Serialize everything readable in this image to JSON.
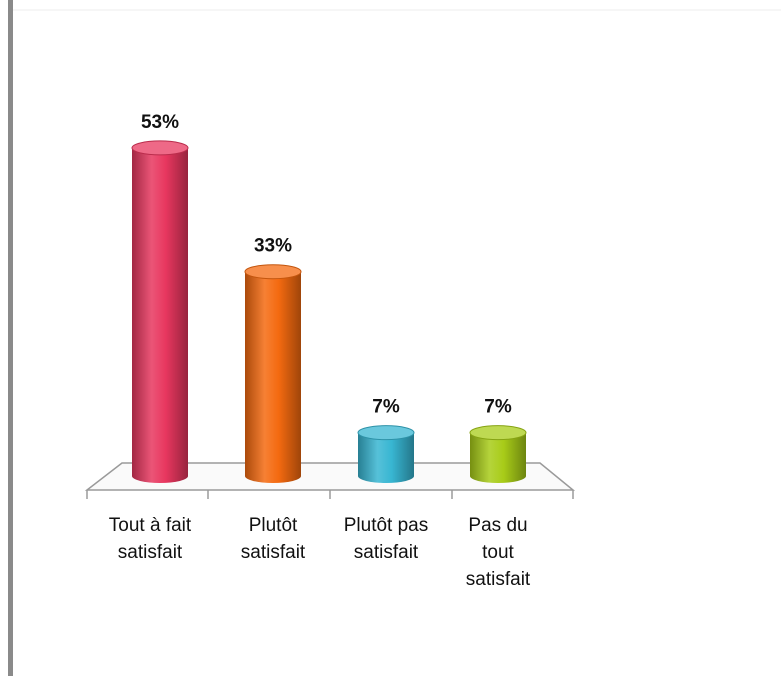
{
  "chart_data": {
    "type": "bar",
    "categories": [
      "Tout à fait satisfait",
      "Plutôt satisfait",
      "Plutôt pas satisfait",
      "Pas du tout satisfait"
    ],
    "values": [
      53,
      33,
      7,
      7
    ],
    "value_labels": [
      "53%",
      "33%",
      "7%",
      "7%"
    ],
    "colors": [
      "#e8375f",
      "#f46a10",
      "#38b6d2",
      "#a8cc18"
    ]
  }
}
